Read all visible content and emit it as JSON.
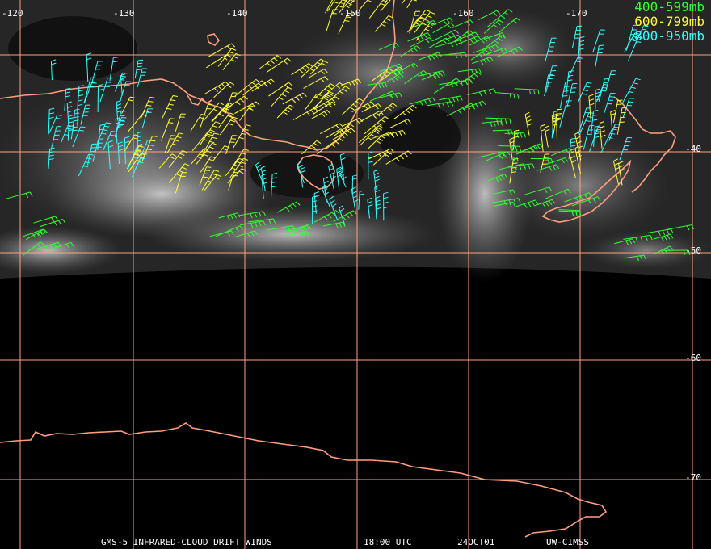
{
  "legend": [
    {
      "label": "400-599mb",
      "color": "#33ff33"
    },
    {
      "label": "600-799mb",
      "color": "#ffff33"
    },
    {
      "label": "800-950mb",
      "color": "#33ffff"
    }
  ],
  "grid_color": "#ff9f80",
  "coast_color": "#ff9f80",
  "lon_labels": [
    "-120",
    "-130",
    "-140",
    "-150",
    "-160",
    "-170"
  ],
  "lat_labels": [
    "-40",
    "-50",
    "-60",
    "-70"
  ],
  "caption": {
    "product": "GMS-5 INFRARED-CLOUD DRIFT WINDS",
    "time": "18:00 UTC",
    "date": "24OCT01",
    "source": "UW-CIMSS"
  }
}
